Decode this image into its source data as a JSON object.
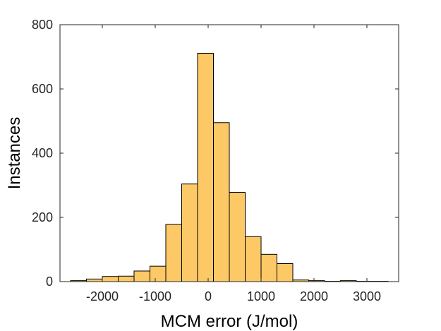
{
  "chart_data": {
    "type": "bar",
    "title": "",
    "xlabel": "MCM error (J/mol)",
    "ylabel": "Instances",
    "xlim": [
      -2800,
      3600
    ],
    "ylim": [
      0,
      800
    ],
    "xticks": [
      -2000,
      -1000,
      0,
      1000,
      2000,
      3000
    ],
    "yticks": [
      0,
      200,
      400,
      600,
      800
    ],
    "xtick_labels": [
      "-2000",
      "-1000",
      "0",
      "1000",
      "2000",
      "3000"
    ],
    "ytick_labels": [
      "0",
      "200",
      "400",
      "600",
      "800"
    ],
    "grid": false,
    "bar_color": "#fdc966",
    "edge_color": "#000000",
    "bins": [
      {
        "start": -2600,
        "end": -2300,
        "count": 3
      },
      {
        "start": -2300,
        "end": -2000,
        "count": 8
      },
      {
        "start": -2000,
        "end": -1700,
        "count": 16
      },
      {
        "start": -1700,
        "end": -1400,
        "count": 17
      },
      {
        "start": -1400,
        "end": -1100,
        "count": 33
      },
      {
        "start": -1100,
        "end": -800,
        "count": 48
      },
      {
        "start": -800,
        "end": -500,
        "count": 178
      },
      {
        "start": -500,
        "end": -200,
        "count": 304
      },
      {
        "start": -200,
        "end": 100,
        "count": 711
      },
      {
        "start": 100,
        "end": 400,
        "count": 495
      },
      {
        "start": 400,
        "end": 700,
        "count": 278
      },
      {
        "start": 700,
        "end": 1000,
        "count": 140
      },
      {
        "start": 1000,
        "end": 1300,
        "count": 85
      },
      {
        "start": 1300,
        "end": 1600,
        "count": 56
      },
      {
        "start": 1600,
        "end": 1900,
        "count": 5
      },
      {
        "start": 1900,
        "end": 2200,
        "count": 3
      },
      {
        "start": 2200,
        "end": 2500,
        "count": 1
      },
      {
        "start": 2500,
        "end": 2800,
        "count": 3
      },
      {
        "start": 2800,
        "end": 3100,
        "count": 1
      },
      {
        "start": 3100,
        "end": 3400,
        "count": 1
      }
    ]
  }
}
